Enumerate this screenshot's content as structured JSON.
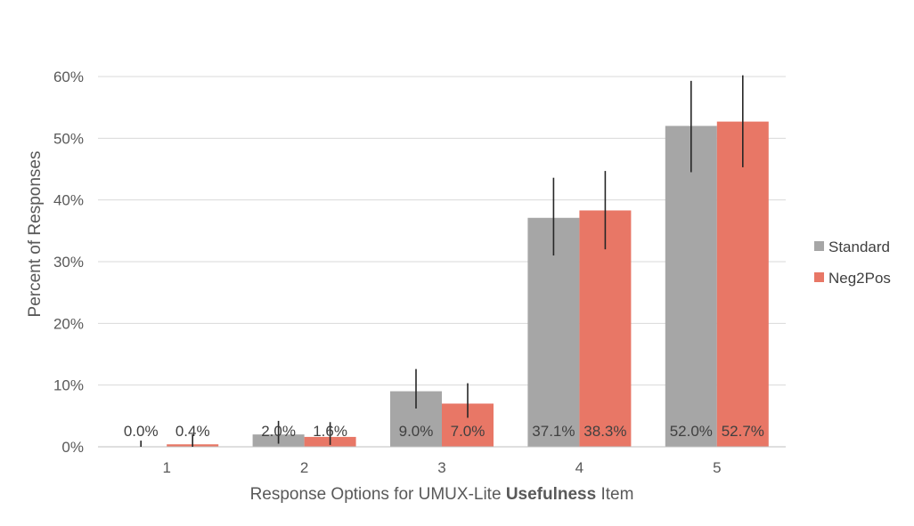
{
  "chart_data": {
    "type": "bar",
    "categories": [
      "1",
      "2",
      "3",
      "4",
      "5"
    ],
    "series": [
      {
        "name": "Standard",
        "values": [
          0.0,
          2.0,
          9.0,
          37.1,
          52.0
        ],
        "error_low": [
          0.0,
          0.5,
          6.2,
          31.0,
          44.5
        ],
        "error_high": [
          1.0,
          4.2,
          12.6,
          43.6,
          59.3
        ],
        "labels": [
          "0.0%",
          "2.0%",
          "9.0%",
          "37.1%",
          "52.0%"
        ],
        "color": "#a6a6a6"
      },
      {
        "name": "Neg2Pos",
        "values": [
          0.4,
          1.6,
          7.0,
          38.3,
          52.7
        ],
        "error_low": [
          0.0,
          0.3,
          4.7,
          32.0,
          45.3
        ],
        "error_high": [
          2.0,
          4.0,
          10.3,
          44.7,
          60.2
        ],
        "labels": [
          "0.4%",
          "1.6%",
          "7.0%",
          "38.3%",
          "52.7%"
        ],
        "color": "#e87766"
      }
    ],
    "xlabel_parts": [
      "Response Options for UMUX-Lite ",
      "Usefulness",
      " Item"
    ],
    "ylabel": "Percent of Responses",
    "ylim": [
      0,
      60
    ],
    "yticks": [
      0,
      10,
      20,
      30,
      40,
      50,
      60
    ],
    "ytick_labels": [
      "0%",
      "10%",
      "20%",
      "30%",
      "40%",
      "50%",
      "60%"
    ],
    "grid": true,
    "legend": "right"
  }
}
